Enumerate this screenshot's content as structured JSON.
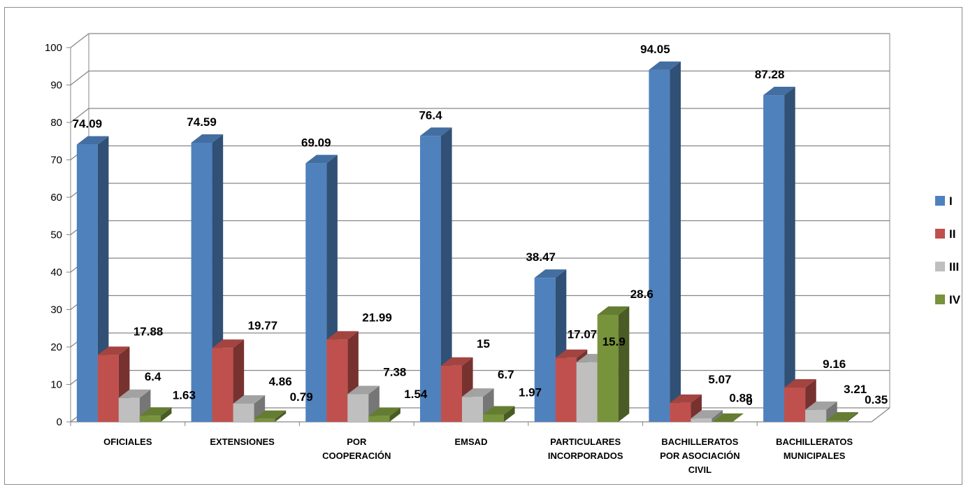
{
  "chart_data": {
    "type": "bar",
    "title": "",
    "xlabel": "",
    "ylabel": "",
    "ylim": [
      0,
      100
    ],
    "yticks": [
      "0",
      "10",
      "20",
      "30",
      "40",
      "50",
      "60",
      "70",
      "80",
      "90",
      "100"
    ],
    "categories": [
      [
        "OFICIALES"
      ],
      [
        "EXTENSIONES"
      ],
      [
        "POR",
        "COOPERACIÓN"
      ],
      [
        "EMSAD"
      ],
      [
        "PARTICULARES",
        "INCORPORADOS"
      ],
      [
        "BACHILLERATOS",
        "POR ASOCIACIÓN",
        "CIVIL"
      ],
      [
        "BACHILLERATOS",
        "MUNICIPALES"
      ]
    ],
    "series": [
      {
        "name": "I",
        "color": "#4F81BD",
        "values": [
          74.09,
          74.59,
          69.09,
          76.4,
          38.47,
          94.05,
          87.28
        ]
      },
      {
        "name": "II",
        "color": "#C0504D",
        "values": [
          17.88,
          19.77,
          21.99,
          15,
          17.07,
          5.07,
          9.16
        ]
      },
      {
        "name": "III",
        "color": "#BFBFBF",
        "values": [
          6.4,
          4.86,
          7.38,
          6.7,
          15.9,
          0.88,
          3.21
        ]
      },
      {
        "name": "IV",
        "color": "#77933C",
        "values": [
          1.63,
          0.79,
          1.54,
          1.97,
          28.6,
          0,
          0.35
        ]
      }
    ],
    "grid": true,
    "legend": "right"
  }
}
